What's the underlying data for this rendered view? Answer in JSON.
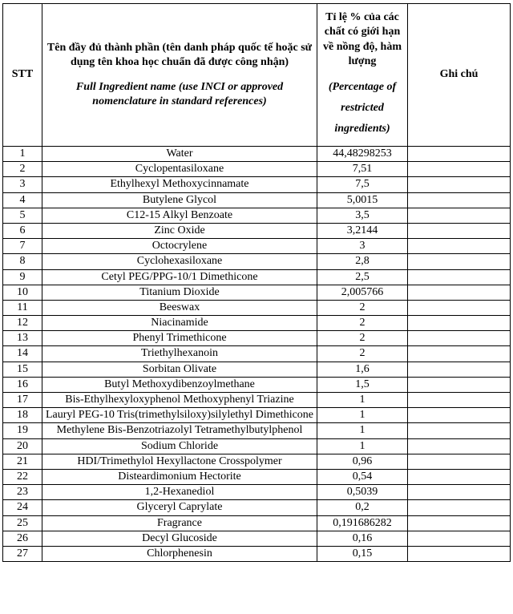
{
  "table": {
    "headers": {
      "stt": "STT",
      "name_vi": "Tên đầy đủ thành phần (tên danh pháp quốc tế hoặc sử dụng tên khoa học chuẩn đã được công nhận)",
      "name_en": "Full Ingredient name (use INCI or approved nomenclature in standard references)",
      "pct_vi": "Tỉ lệ % của các chất có giới hạn về nồng độ, hàm lượng",
      "pct_en": "(Percentage of restricted ingredients)",
      "note": "Ghi chú"
    },
    "rows": [
      {
        "stt": "1",
        "name": "Water",
        "pct": "44,48298253",
        "note": ""
      },
      {
        "stt": "2",
        "name": "Cyclopentasiloxane",
        "pct": "7,51",
        "note": ""
      },
      {
        "stt": "3",
        "name": "Ethylhexyl Methoxycinnamate",
        "pct": "7,5",
        "note": ""
      },
      {
        "stt": "4",
        "name": "Butylene Glycol",
        "pct": "5,0015",
        "note": ""
      },
      {
        "stt": "5",
        "name": "C12-15 Alkyl Benzoate",
        "pct": "3,5",
        "note": ""
      },
      {
        "stt": "6",
        "name": "Zinc Oxide",
        "pct": "3,2144",
        "note": ""
      },
      {
        "stt": "7",
        "name": "Octocrylene",
        "pct": "3",
        "note": ""
      },
      {
        "stt": "8",
        "name": "Cyclohexasiloxane",
        "pct": "2,8",
        "note": ""
      },
      {
        "stt": "9",
        "name": "Cetyl PEG/PPG-10/1 Dimethicone",
        "pct": "2,5",
        "note": ""
      },
      {
        "stt": "10",
        "name": "Titanium Dioxide",
        "pct": "2,005766",
        "note": ""
      },
      {
        "stt": "11",
        "name": "Beeswax",
        "pct": "2",
        "note": ""
      },
      {
        "stt": "12",
        "name": "Niacinamide",
        "pct": "2",
        "note": ""
      },
      {
        "stt": "13",
        "name": "Phenyl Trimethicone",
        "pct": "2",
        "note": ""
      },
      {
        "stt": "14",
        "name": "Triethylhexanoin",
        "pct": "2",
        "note": ""
      },
      {
        "stt": "15",
        "name": "Sorbitan Olivate",
        "pct": "1,6",
        "note": ""
      },
      {
        "stt": "16",
        "name": "Butyl Methoxydibenzoylmethane",
        "pct": "1,5",
        "note": ""
      },
      {
        "stt": "17",
        "name": "Bis-Ethylhexyloxyphenol Methoxyphenyl Triazine",
        "pct": "1",
        "note": ""
      },
      {
        "stt": "18",
        "name": "Lauryl PEG-10 Tris(trimethylsiloxy)silylethyl Dimethicone",
        "pct": "1",
        "note": ""
      },
      {
        "stt": "19",
        "name": "Methylene Bis-Benzotriazolyl Tetramethylbutylphenol",
        "pct": "1",
        "note": ""
      },
      {
        "stt": "20",
        "name": "Sodium Chloride",
        "pct": "1",
        "note": ""
      },
      {
        "stt": "21",
        "name": "HDI/Trimethylol Hexyllactone Crosspolymer",
        "pct": "0,96",
        "note": ""
      },
      {
        "stt": "22",
        "name": "Disteardimonium Hectorite",
        "pct": "0,54",
        "note": ""
      },
      {
        "stt": "23",
        "name": "1,2-Hexanediol",
        "pct": "0,5039",
        "note": ""
      },
      {
        "stt": "24",
        "name": "Glyceryl Caprylate",
        "pct": "0,2",
        "note": ""
      },
      {
        "stt": "25",
        "name": "Fragrance",
        "pct": "0,191686282",
        "note": ""
      },
      {
        "stt": "26",
        "name": "Decyl Glucoside",
        "pct": "0,16",
        "note": ""
      },
      {
        "stt": "27",
        "name": "Chlorphenesin",
        "pct": "0,15",
        "note": ""
      }
    ]
  }
}
